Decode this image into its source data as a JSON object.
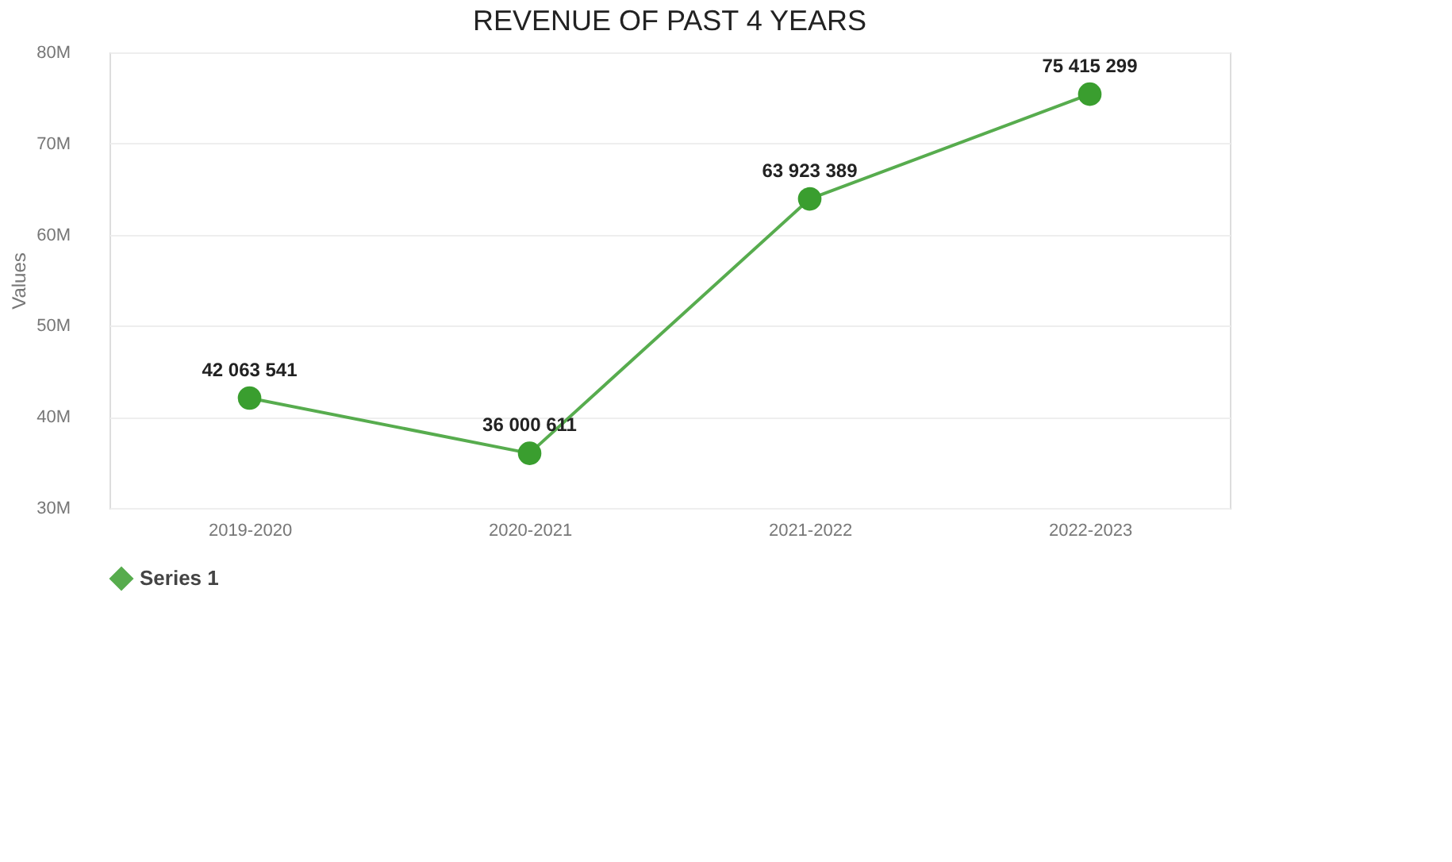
{
  "chart_data": {
    "type": "line",
    "title": "REVENUE OF PAST 4 YEARS",
    "ylabel": "Values",
    "categories": [
      "2019-2020",
      "2020-2021",
      "2021-2022",
      "2022-2023"
    ],
    "series": [
      {
        "name": "Series 1",
        "color": "#3a9e2f",
        "values": [
          42063541,
          36000611,
          63923389,
          75415299
        ],
        "value_labels": [
          "42 063 541",
          "36 000 611",
          "63 923 389",
          "75 415 299"
        ]
      }
    ],
    "ylim": [
      30000000,
      80000000
    ],
    "yticks": [
      {
        "value": 30000000,
        "label": "30M"
      },
      {
        "value": 40000000,
        "label": "40M"
      },
      {
        "value": 50000000,
        "label": "50M"
      },
      {
        "value": 60000000,
        "label": "60M"
      },
      {
        "value": 70000000,
        "label": "70M"
      },
      {
        "value": 80000000,
        "label": "80M"
      }
    ],
    "grid": "y",
    "legend": "bottom",
    "marker": "circle",
    "line_style": "solid"
  }
}
